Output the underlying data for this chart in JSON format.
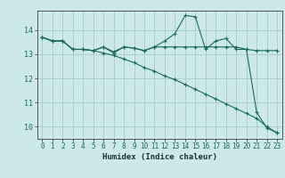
{
  "xlabel": "Humidex (Indice chaleur)",
  "bg_color": "#cce8e8",
  "grid_color": "#aad0d0",
  "line_color": "#1a6b5a",
  "x_values": [
    0,
    1,
    2,
    3,
    4,
    5,
    6,
    7,
    8,
    9,
    10,
    11,
    12,
    13,
    14,
    15,
    16,
    17,
    18,
    19,
    20,
    21,
    22,
    23
  ],
  "line1": [
    13.7,
    13.55,
    13.55,
    13.2,
    13.2,
    13.15,
    13.3,
    13.05,
    13.3,
    13.25,
    13.15,
    13.3,
    13.3,
    13.3,
    13.3,
    13.3,
    13.3,
    13.3,
    13.3,
    13.3,
    13.2,
    13.15,
    13.15,
    13.15
  ],
  "line2": [
    13.7,
    13.55,
    13.55,
    13.2,
    13.2,
    13.15,
    13.3,
    13.1,
    13.3,
    13.25,
    13.15,
    13.3,
    13.55,
    13.85,
    14.6,
    14.55,
    13.2,
    13.55,
    13.65,
    13.2,
    13.2,
    10.6,
    9.95,
    9.75
  ],
  "line3": [
    13.7,
    13.55,
    13.55,
    13.2,
    13.2,
    13.15,
    13.05,
    12.95,
    12.8,
    12.65,
    12.45,
    12.3,
    12.1,
    11.95,
    11.75,
    11.55,
    11.35,
    11.15,
    10.95,
    10.75,
    10.55,
    10.35,
    10.0,
    9.75
  ],
  "ylim": [
    9.5,
    14.8
  ],
  "xlim": [
    -0.5,
    23.5
  ],
  "yticks": [
    10,
    11,
    12,
    13,
    14
  ],
  "xticks": [
    0,
    1,
    2,
    3,
    4,
    5,
    6,
    7,
    8,
    9,
    10,
    11,
    12,
    13,
    14,
    15,
    16,
    17,
    18,
    19,
    20,
    21,
    22,
    23
  ]
}
